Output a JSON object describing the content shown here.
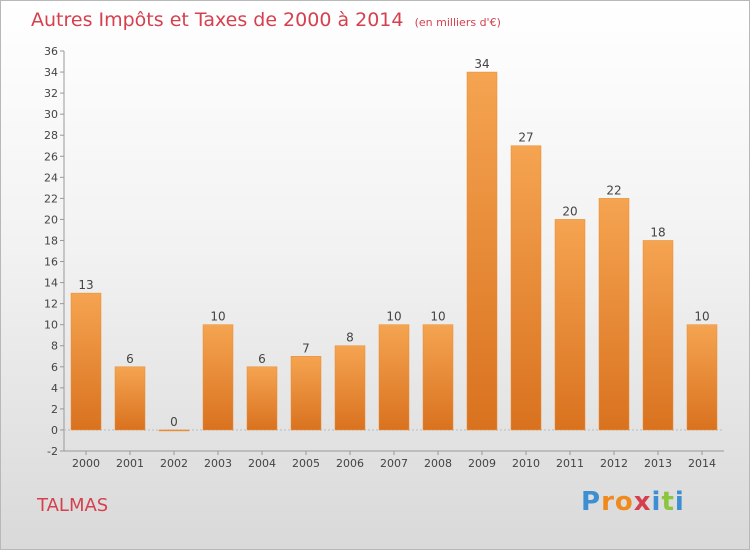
{
  "header": {
    "title": "Autres Impôts et Taxes de 2000 à 2014",
    "unit": "(en milliers d'€)"
  },
  "footer": {
    "place": "TALMAS",
    "brand_letters": [
      "P",
      "r",
      "o",
      "x",
      "i",
      "t",
      "i"
    ]
  },
  "colors": {
    "title": "#d6404e",
    "bar_top": "#f5a451",
    "bar_bottom": "#d9721f",
    "brand": [
      "#3d8fd4",
      "#f08a1c",
      "#f08a1c",
      "#d6404e",
      "#3d8fd4",
      "#8cc63f",
      "#3d8fd4"
    ]
  },
  "chart_data": {
    "type": "bar",
    "title": "Autres Impôts et Taxes de 2000 à 2014",
    "subtitle": "(en milliers d'€)",
    "xlabel": "",
    "ylabel": "",
    "categories": [
      "2000",
      "2001",
      "2002",
      "2003",
      "2004",
      "2005",
      "2006",
      "2007",
      "2008",
      "2009",
      "2010",
      "2011",
      "2012",
      "2013",
      "2014"
    ],
    "values": [
      13,
      6,
      0,
      10,
      6,
      7,
      8,
      10,
      10,
      34,
      27,
      20,
      22,
      18,
      10
    ],
    "data_labels": [
      "13",
      "6",
      "0",
      "10",
      "6",
      "7",
      "8",
      "10",
      "10",
      "34",
      "27",
      "20",
      "22",
      "18",
      "10"
    ],
    "ylim": [
      -2,
      36
    ],
    "yticks": [
      -2,
      0,
      2,
      4,
      6,
      8,
      10,
      12,
      14,
      16,
      18,
      20,
      22,
      24,
      26,
      28,
      30,
      32,
      34,
      36
    ],
    "grid": false,
    "legend": "none"
  }
}
